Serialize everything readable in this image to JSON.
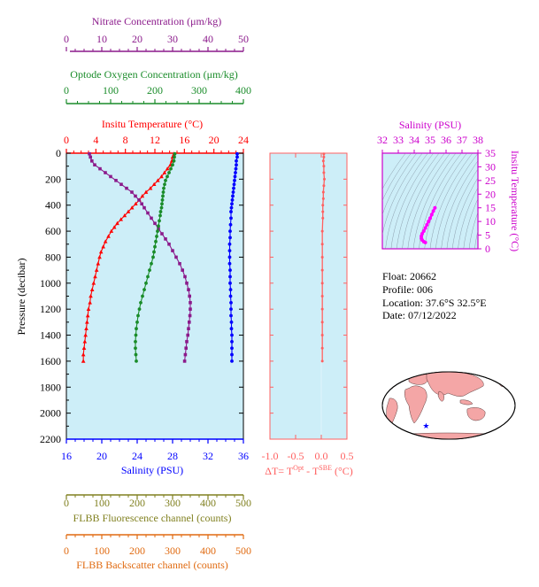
{
  "colors": {
    "nitrate": "#8b1a8b",
    "oxygen": "#1a8c2a",
    "temperature": "#ff0000",
    "salinity": "#0000ff",
    "fluorescence": "#808020",
    "backscatter": "#e06a10",
    "delta": "#ff6060",
    "panel_bg": "#cdeef8",
    "ts_line": "#ff00ff"
  },
  "axes_labels": {
    "nitrate": "Nitrate Concentration (μm/kg)",
    "oxygen": "Optode Oxygen Concentration (μm/kg)",
    "temperature": "Insitu Temperature (°C)",
    "pressure": "Pressure (decibar)",
    "salinity": "Salinity (PSU)",
    "fluorescence": "FLBB Fluorescence channel (counts)",
    "backscatter": "FLBB Backscatter channel (counts)",
    "delta_prefix": "ΔT= T",
    "delta_sup1": "Opt",
    "delta_mid": " - T",
    "delta_sup2": "SBE",
    "delta_suffix": " (°C)",
    "ts_salinity": "Salinity (PSU)",
    "ts_temperature": "Insitu Temperature (°C)"
  },
  "info": {
    "float": "Float:  20662",
    "profile": "Profile:  006",
    "location": "Location:  37.6°S  32.5°E",
    "date": "Date:  07/12/2022"
  },
  "chart_data": [
    {
      "type": "line",
      "panel": "main-profile",
      "ylim": [
        2200,
        0
      ],
      "yticks": [
        "0",
        "200",
        "400",
        "600",
        "800",
        "1000",
        "1200",
        "1400",
        "1600",
        "1800",
        "2000",
        "2200"
      ],
      "axes": {
        "nitrate": {
          "range": [
            0,
            50
          ],
          "ticks": [
            "0",
            "10",
            "20",
            "30",
            "40",
            "50"
          ]
        },
        "oxygen": {
          "range": [
            0,
            400
          ],
          "ticks": [
            "0",
            "100",
            "200",
            "300",
            "400"
          ]
        },
        "temperature": {
          "range": [
            0,
            24
          ],
          "ticks": [
            "0",
            "4",
            "8",
            "12",
            "16",
            "20",
            "24"
          ]
        },
        "salinity": {
          "range": [
            16,
            36
          ],
          "ticks": [
            "16",
            "20",
            "24",
            "28",
            "32",
            "36"
          ]
        },
        "fluorescence": {
          "range": [
            0,
            500
          ],
          "ticks": [
            "0",
            "100",
            "200",
            "300",
            "400",
            "500"
          ]
        },
        "backscatter": {
          "range": [
            0,
            500
          ],
          "ticks": [
            "0",
            "100",
            "200",
            "300",
            "400",
            "500"
          ]
        }
      },
      "series": [
        {
          "key": "temperature",
          "marker": "triangle",
          "points": [
            [
              14.6,
              5
            ],
            [
              14.4,
              30
            ],
            [
              14.3,
              60
            ],
            [
              14.1,
              90
            ],
            [
              13.7,
              120
            ],
            [
              13.3,
              150
            ],
            [
              12.9,
              180
            ],
            [
              12.4,
              210
            ],
            [
              11.9,
              240
            ],
            [
              11.4,
              270
            ],
            [
              10.8,
              300
            ],
            [
              10.3,
              330
            ],
            [
              9.9,
              360
            ],
            [
              9.4,
              390
            ],
            [
              8.9,
              420
            ],
            [
              8.4,
              450
            ],
            [
              7.9,
              480
            ],
            [
              7.4,
              510
            ],
            [
              6.9,
              540
            ],
            [
              6.5,
              570
            ],
            [
              6.1,
              600
            ],
            [
              5.7,
              640
            ],
            [
              5.3,
              680
            ],
            [
              5.0,
              720
            ],
            [
              4.7,
              760
            ],
            [
              4.5,
              800
            ],
            [
              4.3,
              850
            ],
            [
              4.1,
              900
            ],
            [
              3.9,
              950
            ],
            [
              3.7,
              1000
            ],
            [
              3.5,
              1050
            ],
            [
              3.3,
              1100
            ],
            [
              3.2,
              1150
            ],
            [
              3.0,
              1200
            ],
            [
              2.9,
              1250
            ],
            [
              2.8,
              1300
            ],
            [
              2.7,
              1350
            ],
            [
              2.6,
              1400
            ],
            [
              2.5,
              1450
            ],
            [
              2.4,
              1500
            ],
            [
              2.3,
              1550
            ],
            [
              2.3,
              1600
            ]
          ]
        },
        {
          "key": "salinity",
          "marker": "circle",
          "points": [
            [
              35.3,
              5
            ],
            [
              35.3,
              30
            ],
            [
              35.2,
              60
            ],
            [
              35.2,
              90
            ],
            [
              35.15,
              120
            ],
            [
              35.1,
              150
            ],
            [
              35.05,
              180
            ],
            [
              35.0,
              210
            ],
            [
              34.95,
              240
            ],
            [
              34.9,
              270
            ],
            [
              34.85,
              300
            ],
            [
              34.8,
              330
            ],
            [
              34.75,
              360
            ],
            [
              34.7,
              390
            ],
            [
              34.65,
              420
            ],
            [
              34.6,
              450
            ],
            [
              34.6,
              500
            ],
            [
              34.55,
              550
            ],
            [
              34.5,
              600
            ],
            [
              34.5,
              650
            ],
            [
              34.45,
              700
            ],
            [
              34.45,
              750
            ],
            [
              34.45,
              800
            ],
            [
              34.45,
              850
            ],
            [
              34.5,
              900
            ],
            [
              34.5,
              950
            ],
            [
              34.5,
              1000
            ],
            [
              34.55,
              1050
            ],
            [
              34.55,
              1100
            ],
            [
              34.6,
              1150
            ],
            [
              34.6,
              1200
            ],
            [
              34.6,
              1250
            ],
            [
              34.65,
              1300
            ],
            [
              34.65,
              1350
            ],
            [
              34.7,
              1400
            ],
            [
              34.7,
              1450
            ],
            [
              34.7,
              1500
            ],
            [
              34.7,
              1550
            ],
            [
              34.7,
              1600
            ]
          ]
        },
        {
          "key": "nitrate",
          "marker": "square",
          "points": [
            [
              6.5,
              5
            ],
            [
              6.8,
              30
            ],
            [
              7.2,
              60
            ],
            [
              8.0,
              90
            ],
            [
              9.5,
              120
            ],
            [
              11.0,
              150
            ],
            [
              12.5,
              180
            ],
            [
              14.0,
              210
            ],
            [
              15.5,
              240
            ],
            [
              17.0,
              270
            ],
            [
              18.5,
              300
            ],
            [
              19.5,
              330
            ],
            [
              20.5,
              360
            ],
            [
              21.3,
              390
            ],
            [
              22.0,
              420
            ],
            [
              23.0,
              460
            ],
            [
              24.0,
              500
            ],
            [
              25.0,
              540
            ],
            [
              26.0,
              580
            ],
            [
              27.0,
              620
            ],
            [
              28.0,
              660
            ],
            [
              29.0,
              700
            ],
            [
              30.0,
              750
            ],
            [
              31.0,
              800
            ],
            [
              32.0,
              850
            ],
            [
              32.8,
              900
            ],
            [
              33.5,
              950
            ],
            [
              34.0,
              1000
            ],
            [
              34.5,
              1050
            ],
            [
              34.8,
              1100
            ],
            [
              35.0,
              1150
            ],
            [
              35.0,
              1200
            ],
            [
              34.9,
              1250
            ],
            [
              34.7,
              1300
            ],
            [
              34.5,
              1350
            ],
            [
              34.3,
              1400
            ],
            [
              34.0,
              1450
            ],
            [
              33.8,
              1500
            ],
            [
              33.6,
              1550
            ],
            [
              33.4,
              1600
            ]
          ]
        },
        {
          "key": "oxygen",
          "marker": "circle",
          "points": [
            [
              245,
              5
            ],
            [
              244,
              30
            ],
            [
              243,
              60
            ],
            [
              240,
              90
            ],
            [
              236,
              120
            ],
            [
              232,
              150
            ],
            [
              228,
              180
            ],
            [
              224,
              210
            ],
            [
              222,
              240
            ],
            [
              220,
              270
            ],
            [
              219,
              300
            ],
            [
              218,
              330
            ],
            [
              217,
              360
            ],
            [
              216,
              390
            ],
            [
              215,
              420
            ],
            [
              213,
              450
            ],
            [
              212,
              480
            ],
            [
              210,
              520
            ],
            [
              208,
              560
            ],
            [
              206,
              600
            ],
            [
              204,
              640
            ],
            [
              202,
              680
            ],
            [
              200,
              720
            ],
            [
              198,
              760
            ],
            [
              196,
              800
            ],
            [
              192,
              850
            ],
            [
              188,
              900
            ],
            [
              184,
              950
            ],
            [
              180,
              1000
            ],
            [
              176,
              1050
            ],
            [
              172,
              1100
            ],
            [
              168,
              1150
            ],
            [
              165,
              1200
            ],
            [
              162,
              1250
            ],
            [
              160,
              1300
            ],
            [
              158,
              1350
            ],
            [
              157,
              1400
            ],
            [
              156,
              1450
            ],
            [
              156,
              1500
            ],
            [
              157,
              1550
            ],
            [
              158,
              1600
            ]
          ]
        }
      ]
    },
    {
      "type": "line",
      "panel": "delta-t",
      "xlim": [
        -1.0,
        0.5
      ],
      "xticks": [
        "-1.0",
        "-0.5",
        "0.0",
        "0.5"
      ],
      "ylim": [
        2200,
        0
      ],
      "points": [
        [
          0.05,
          5
        ],
        [
          0.05,
          30
        ],
        [
          0.04,
          60
        ],
        [
          0.05,
          100
        ],
        [
          0.05,
          150
        ],
        [
          0.06,
          200
        ],
        [
          0.05,
          250
        ],
        [
          0.04,
          300
        ],
        [
          0.04,
          350
        ],
        [
          0.03,
          400
        ],
        [
          0.03,
          450
        ],
        [
          0.03,
          500
        ],
        [
          0.02,
          600
        ],
        [
          0.02,
          700
        ],
        [
          0.02,
          800
        ],
        [
          0.02,
          900
        ],
        [
          0.02,
          1000
        ],
        [
          0.02,
          1100
        ],
        [
          0.02,
          1200
        ],
        [
          0.02,
          1300
        ],
        [
          0.02,
          1400
        ],
        [
          0.02,
          1500
        ],
        [
          0.02,
          1600
        ]
      ]
    },
    {
      "type": "scatter",
      "panel": "ts-diagram",
      "xlim": [
        32,
        38
      ],
      "ylim": [
        0,
        35
      ],
      "xticks": [
        "32",
        "33",
        "34",
        "35",
        "36",
        "37",
        "38"
      ],
      "yticks": [
        "0",
        "5",
        "10",
        "15",
        "20",
        "25",
        "30",
        "35"
      ],
      "points": [
        [
          35.3,
          15.0
        ],
        [
          35.2,
          13.8
        ],
        [
          35.1,
          12.5
        ],
        [
          35.0,
          11.2
        ],
        [
          34.9,
          10.0
        ],
        [
          34.8,
          8.8
        ],
        [
          34.7,
          7.6
        ],
        [
          34.6,
          6.5
        ],
        [
          34.5,
          5.5
        ],
        [
          34.45,
          4.6
        ],
        [
          34.45,
          3.8
        ],
        [
          34.5,
          3.2
        ],
        [
          34.6,
          2.6
        ],
        [
          34.7,
          2.3
        ]
      ]
    },
    {
      "type": "map",
      "panel": "world-map",
      "marker_lonlat": [
        32.5,
        -37.6
      ]
    }
  ]
}
